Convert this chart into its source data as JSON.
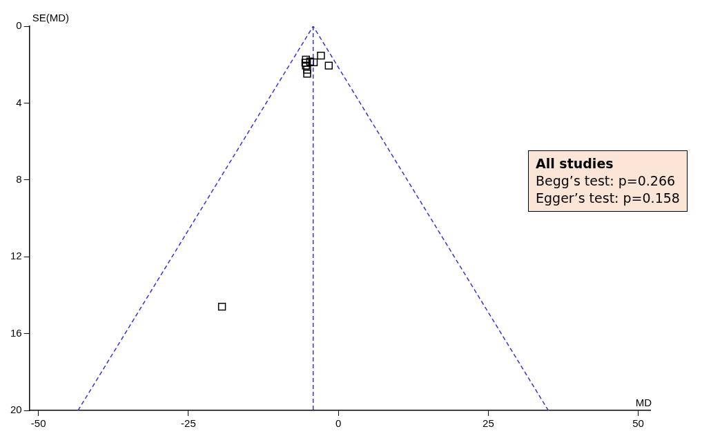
{
  "chart_data": {
    "type": "scatter",
    "xlabel": "MD",
    "ylabel": "SE(MD)",
    "xlim": [
      -51.5,
      52
    ],
    "xticks": [
      -50,
      -25,
      0,
      25,
      50
    ],
    "ylim": [
      20,
      0
    ],
    "yticks": [
      0,
      4,
      8,
      12,
      16,
      20
    ],
    "grid": false,
    "legend": false,
    "marker": "square",
    "series": [
      {
        "color": "#000000",
        "x": [
          -2.9,
          -1.6,
          -4.1,
          -5.4,
          -5.5,
          -5.4,
          -5.2,
          -5.2,
          -4.7,
          -19.4
        ],
        "values": [
          1.53,
          2.05,
          1.88,
          1.74,
          1.9,
          2.05,
          2.26,
          2.47,
          1.84,
          14.6
        ]
      },
      {
        "type": "line",
        "color": "#3333dd",
        "marker": "none",
        "line_style": "dashed",
        "x": [
          -43.4,
          -4.2,
          35
        ],
        "values": [
          20,
          0,
          20
        ]
      }
    ],
    "ref_lines": [
      {
        "axis": "x",
        "value": -4.2,
        "color": "#3333dd",
        "line_style": "dashed"
      }
    ],
    "annotations": [
      "All studies",
      "Begg’s test: p=0.266",
      "Egger’s test: p=0.158"
    ]
  }
}
